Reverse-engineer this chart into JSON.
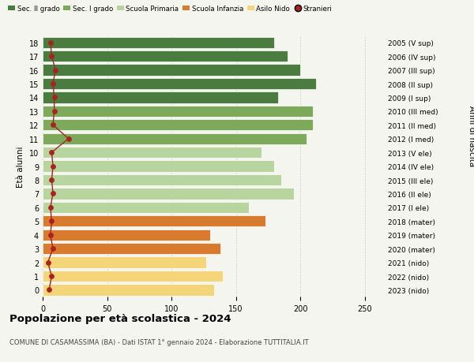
{
  "ages": [
    18,
    17,
    16,
    15,
    14,
    13,
    12,
    11,
    10,
    9,
    8,
    7,
    6,
    5,
    4,
    3,
    2,
    1,
    0
  ],
  "right_labels": [
    "2005 (V sup)",
    "2006 (IV sup)",
    "2007 (III sup)",
    "2008 (II sup)",
    "2009 (I sup)",
    "2010 (III med)",
    "2011 (II med)",
    "2012 (I med)",
    "2013 (V ele)",
    "2014 (IV ele)",
    "2015 (III ele)",
    "2016 (II ele)",
    "2017 (I ele)",
    "2018 (mater)",
    "2019 (mater)",
    "2020 (mater)",
    "2021 (nido)",
    "2022 (nido)",
    "2023 (nido)"
  ],
  "bar_values": [
    180,
    190,
    200,
    212,
    183,
    210,
    210,
    205,
    170,
    180,
    185,
    195,
    160,
    173,
    130,
    138,
    127,
    140,
    133
  ],
  "stranieri_values": [
    6,
    7,
    10,
    8,
    9,
    9,
    8,
    20,
    7,
    8,
    7,
    8,
    6,
    7,
    6,
    8,
    4,
    7,
    5
  ],
  "bar_colors": [
    "#4a7c3f",
    "#4a7c3f",
    "#4a7c3f",
    "#4a7c3f",
    "#4a7c3f",
    "#7daa5a",
    "#7daa5a",
    "#7daa5a",
    "#b8d5a0",
    "#b8d5a0",
    "#b8d5a0",
    "#b8d5a0",
    "#b8d5a0",
    "#d97b2e",
    "#d97b2e",
    "#d97b2e",
    "#f5d57a",
    "#f5d57a",
    "#f5d57a"
  ],
  "legend_labels": [
    "Sec. II grado",
    "Sec. I grado",
    "Scuola Primaria",
    "Scuola Infanzia",
    "Asilo Nido",
    "Stranieri"
  ],
  "legend_colors": [
    "#4a7c3f",
    "#7daa5a",
    "#b8d5a0",
    "#d97b2e",
    "#f5d57a",
    "#a82222"
  ],
  "stranieri_color": "#a82222",
  "title": "Popolazione per età scolastica - 2024",
  "subtitle": "COMUNE DI CASAMASSIMA (BA) - Dati ISTAT 1° gennaio 2024 - Elaborazione TUTTITALIA.IT",
  "ylabel": "Età alunni",
  "ylabel2": "Anni di nascita",
  "xlim": [
    0,
    265
  ],
  "background_color": "#f5f5f0",
  "grid_color": "#cccccc",
  "bar_height": 0.82
}
